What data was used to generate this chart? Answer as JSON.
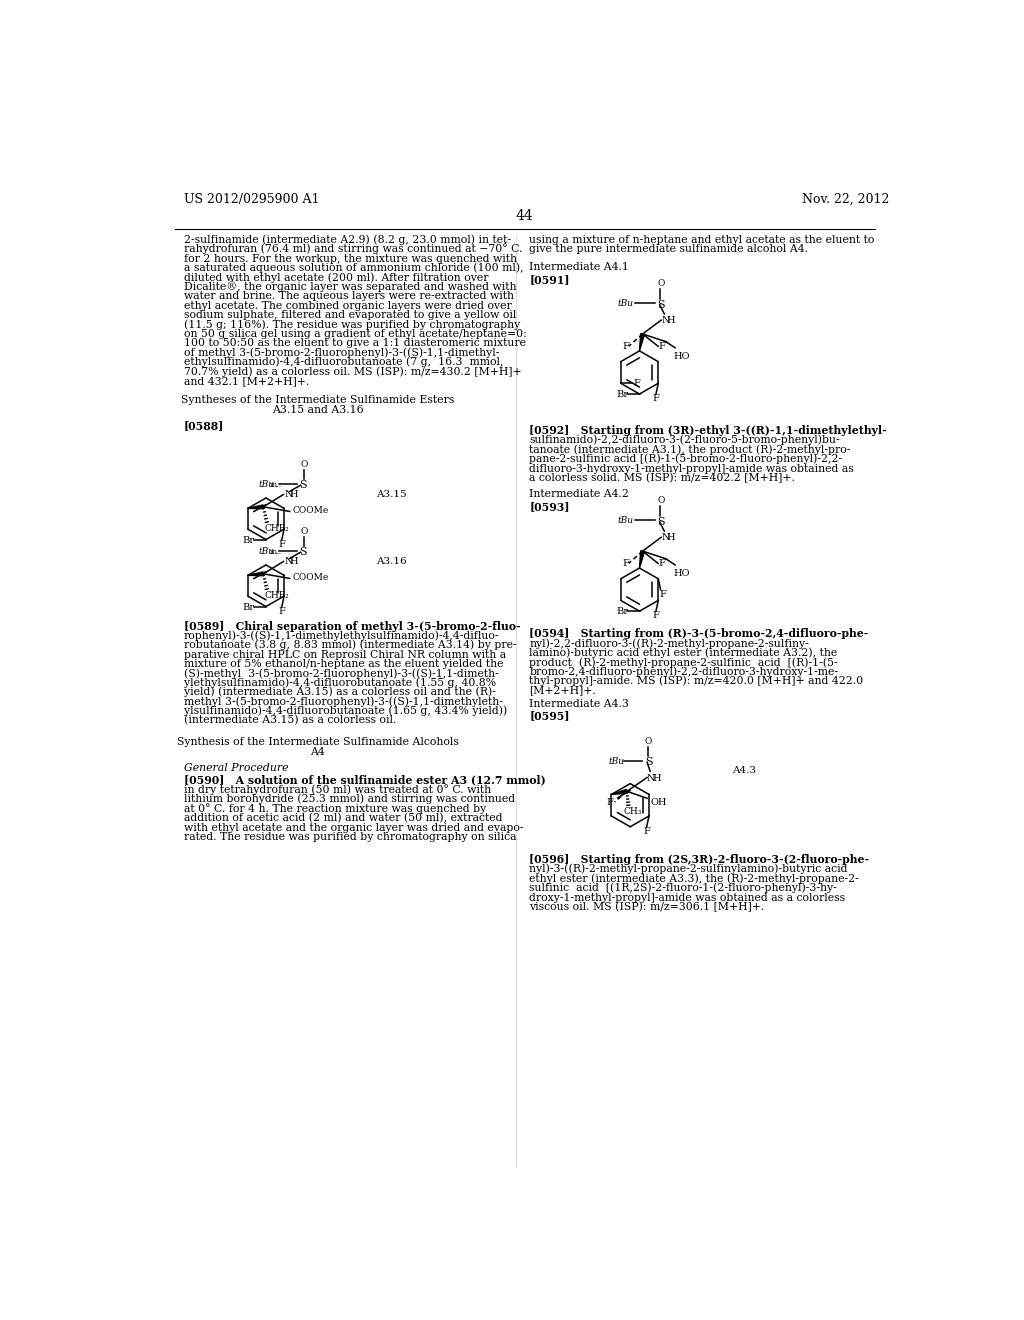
{
  "page_header_left": "US 2012/0295900 A1",
  "page_header_right": "Nov. 22, 2012",
  "page_number": "44",
  "background_color": "#ffffff",
  "text_color": "#000000",
  "left_column_text": [
    "2-sulfinamide (intermediate A2.9) (8.2 g, 23.0 mmol) in tet-",
    "rahydrofuran (76.4 ml) and stirring was continued at −70° C.",
    "for 2 hours. For the workup, the mixture was quenched with",
    "a saturated aqueous solution of ammonium chloride (100 ml),",
    "diluted with ethyl acetate (200 ml). After filtration over",
    "Dicalite®, the organic layer was separated and washed with",
    "water and brine. The aqueous layers were re-extracted with",
    "ethyl acetate. The combined organic layers were dried over",
    "sodium sulphate, filtered and evaporated to give a yellow oil",
    "(11.5 g; 116%). The residue was purified by chromatography",
    "on 50 g silica gel using a gradient of ethyl acetate/heptane=0:",
    "100 to 50:50 as the eluent to give a 1:1 diasteromeric mixture",
    "of methyl 3-(5-bromo-2-fluorophenyl)-3-((S)-1,1-dimethyl-",
    "ethylsulfinamido)-4,4-difluorobutanoate (7 g,  16.3  mmol,",
    "70.7% yield) as a colorless oil. MS (ISP): m/z=430.2 [M+H]+",
    "and 432.1 [M+2+H]+."
  ],
  "left_col_section_title": [
    "Syntheses of the Intermediate Sulfinamide Esters",
    "A3.15 and A3.16"
  ],
  "left_col_para_0588": "[0588]",
  "right_col_text_intro": [
    "using a mixture of n-heptane and ethyl acetate as the eluent to",
    "give the pure intermediate sulfinamide alcohol A4."
  ],
  "right_col_int_a41": "Intermediate A4.1",
  "right_col_para_0591": "[0591]",
  "right_col_para_0592": [
    "[0592]   Starting from (3R)-ethyl 3-((R)-1,1-dimethylethyl-",
    "sulfinamido)-2,2-difluoro-3-(2-fluoro-5-bromo-phenyl)bu-",
    "tanoate (intermediate A3.1), the product (R)-2-methyl-pro-",
    "pane-2-sulfinic acid [(R)-1-(5-bromo-2-fluoro-phenyl)-2,2-",
    "difluoro-3-hydroxy-1-methyl-propyl]-amide was obtained as",
    "a colorless solid. MS (ISP): m/z=402.2 [M+H]+."
  ],
  "right_col_int_a42": "Intermediate A4.2",
  "right_col_para_0593": "[0593]",
  "right_col_para_0594": [
    "[0594]   Starting from (R)-3-(5-bromo-2,4-difluoro-phe-",
    "nyl)-2,2-difluoro-3-((R)-2-methyl-propane-2-sulfiny-",
    "lamino)-butyric acid ethyl ester (intermediate A3.2), the",
    "product  (R)-2-methyl-propane-2-sulfinic  acid  [(R)-1-(5-",
    "bromo-2,4-difluoro-phenyl)-2,2-difluoro-3-hydroxy-1-me-",
    "thyl-propyl]-amide. MS (ISP): m/z=420.0 [M+H]+ and 422.0",
    "[M+2+H]+."
  ],
  "right_col_int_a43": "Intermediate A4.3",
  "right_col_para_0595": "[0595]",
  "left_col_para_0589_text": [
    "[0589]   Chiral separation of methyl 3-(5-bromo-2-fluo-",
    "rophenyl)-3-((S)-1,1-dimethylethylsulfinamido)-4,4-difluo-",
    "robutanoate (3.8 g, 8.83 mmol) (intermediate A3.14) by pre-",
    "parative chiral HPLC on Reprosil Chiral NR column with a",
    "mixture of 5% ethanol/n-heptane as the eluent yielded the",
    "(S)-methyl  3-(5-bromo-2-fluorophenyl)-3-((S)-1,1-dimeth-",
    "ylethylsulfinamido)-4,4-difluorobutanoate (1.55 g, 40.8%",
    "yield) (intermediate A3.15) as a colorless oil and the (R)-",
    "methyl 3-(5-bromo-2-fluorophenyl)-3-((S)-1,1-dimethyleth-",
    "ylsulfinamido)-4,4-difluorobutanoate (1.65 g, 43.4% yield))",
    "(intermediate A3.15) as a colorless oil."
  ],
  "left_col_section_title2": [
    "Synthesis of the Intermediate Sulfinamide Alcohols",
    "A4"
  ],
  "left_col_general_procedure": "General Procedure",
  "left_col_para_0590_text": [
    "[0590]   A solution of the sulfinamide ester A3 (12.7 mmol)",
    "in dry tetrahydrofuran (50 ml) was treated at 0° C. with",
    "lithium borohydride (25.3 mmol) and stirring was continued",
    "at 0° C. for 4 h. The reaction mixture was quenched by",
    "addition of acetic acid (2 ml) and water (50 ml), extracted",
    "with ethyl acetate and the organic layer was dried and evapo-",
    "rated. The residue was purified by chromatography on silica"
  ],
  "right_col_para_0596_text": [
    "[0596]   Starting from (2S,3R)-2-fluoro-3-(2-fluoro-phe-",
    "nyl)-3-((R)-2-methyl-propane-2-sulfinylamino)-butyric acid",
    "ethyl ester (intermediate A3.3), the (R)-2-methyl-propane-2-",
    "sulfinic  acid  [(1R,2S)-2-fluoro-1-(2-fluoro-phenyl)-3-hy-",
    "droxy-1-methyl-propyl]-amide was obtained as a colorless",
    "viscous oil. MS (ISP): m/z=306.1 [M+H]+."
  ]
}
